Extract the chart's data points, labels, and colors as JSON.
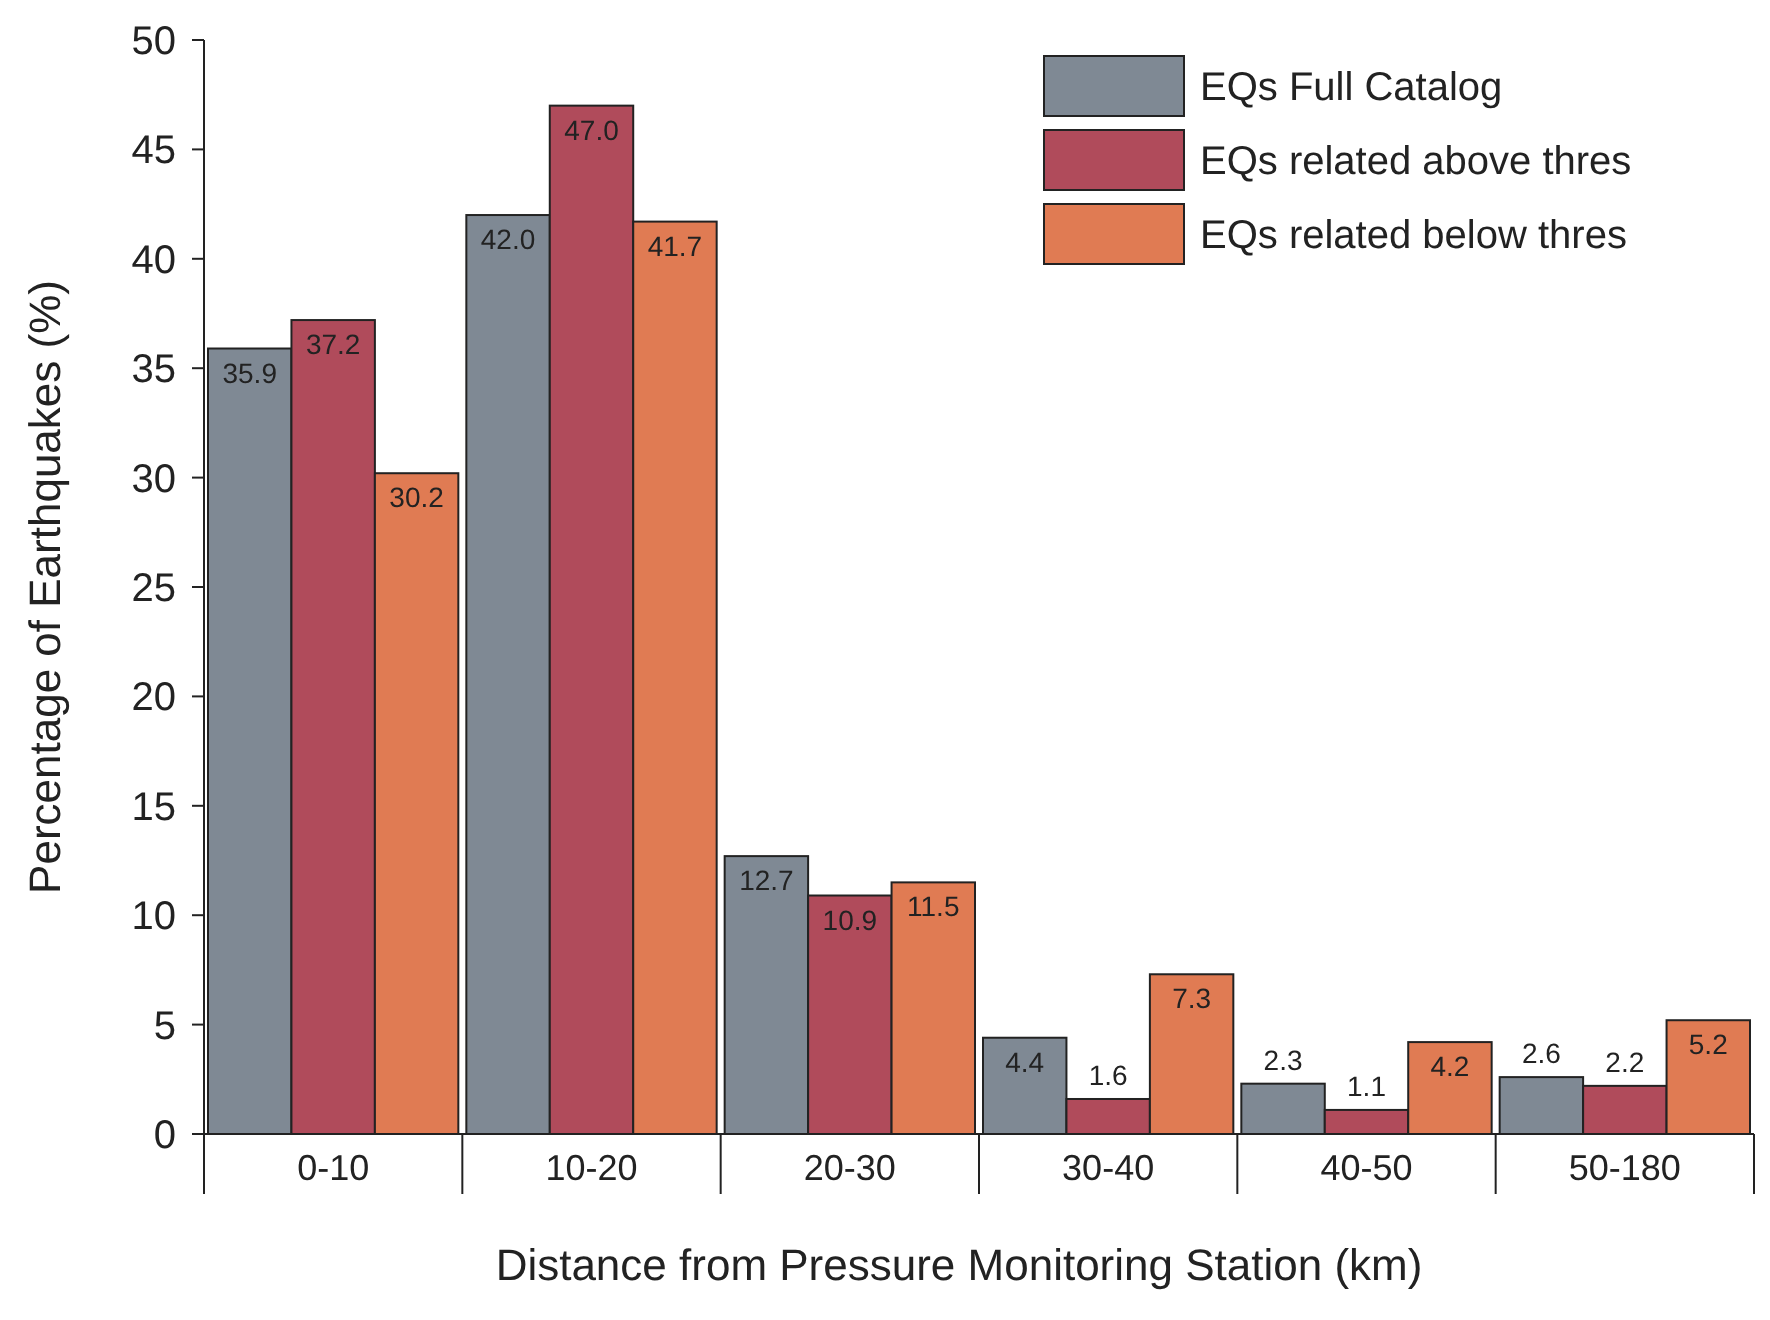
{
  "chart_data": {
    "type": "bar",
    "xlabel": "Distance from Pressure Monitoring Station (km)",
    "ylabel": "Percentage of Earthquakes (%)",
    "categories": [
      "0-10",
      "10-20",
      "20-30",
      "30-40",
      "40-50",
      "50-180"
    ],
    "series": [
      {
        "name": "EQs Full Catalog",
        "color": "#7f8994",
        "values": [
          35.9,
          42.0,
          12.7,
          4.4,
          2.3,
          2.6
        ],
        "value_labels": [
          "35.9",
          "42.0",
          "12.7",
          "4.4",
          "2.3",
          "2.6"
        ]
      },
      {
        "name": "EQs related above thres",
        "color": "#b04b5b",
        "values": [
          37.2,
          47.0,
          10.9,
          1.6,
          1.1,
          2.2
        ],
        "value_labels": [
          "37.2",
          "47.0",
          "10.9",
          "1.6",
          "1.1",
          "2.2"
        ]
      },
      {
        "name": "EQs related below thres",
        "color": "#e07b53",
        "values": [
          30.2,
          41.7,
          11.5,
          7.3,
          4.2,
          5.2
        ],
        "value_labels": [
          "30.2",
          "41.7",
          "11.5",
          "7.3",
          "4.2",
          "5.2"
        ]
      }
    ],
    "ylim": [
      0,
      50
    ],
    "yticks": [
      0,
      5,
      10,
      15,
      20,
      25,
      30,
      35,
      40,
      45,
      50
    ],
    "legend": "top right",
    "grid": false
  }
}
